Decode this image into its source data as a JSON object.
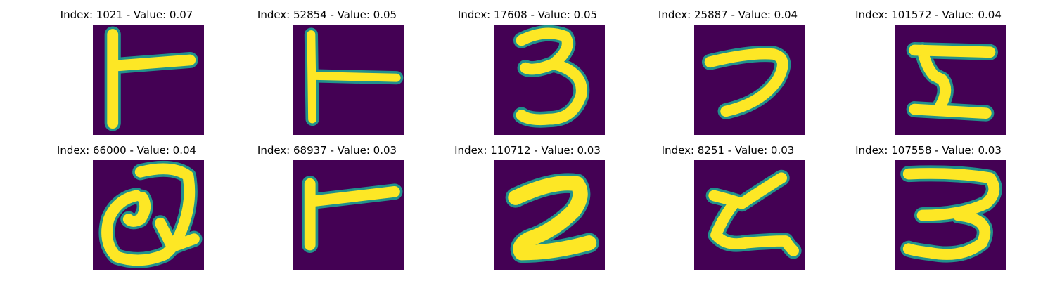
{
  "panels": [
    {
      "title": "Index: 1021 - Value: 0.07",
      "glyph": "T-rotated"
    },
    {
      "title": "Index: 52854 - Value: 0.05",
      "glyph": "T-rotated-thin"
    },
    {
      "title": "Index: 17608 - Value: 0.05",
      "glyph": "three"
    },
    {
      "title": "Index: 25887 - Value: 0.04",
      "glyph": "seven-like"
    },
    {
      "title": "Index: 101572 - Value: 0.04",
      "glyph": "five-like"
    },
    {
      "title": "Index: 66000 - Value: 0.04",
      "glyph": "q-loop"
    },
    {
      "title": "Index: 68937 - Value: 0.03",
      "glyph": "T-rotated-short"
    },
    {
      "title": "Index: 110712 - Value: 0.03",
      "glyph": "two-bold"
    },
    {
      "title": "Index: 8251 - Value: 0.03",
      "glyph": "z-like"
    },
    {
      "title": "Index: 107558 - Value: 0.03",
      "glyph": "three-wide"
    }
  ],
  "colors": {
    "background": "#440154",
    "stroke": "#fde725",
    "edge": "#21918c"
  }
}
